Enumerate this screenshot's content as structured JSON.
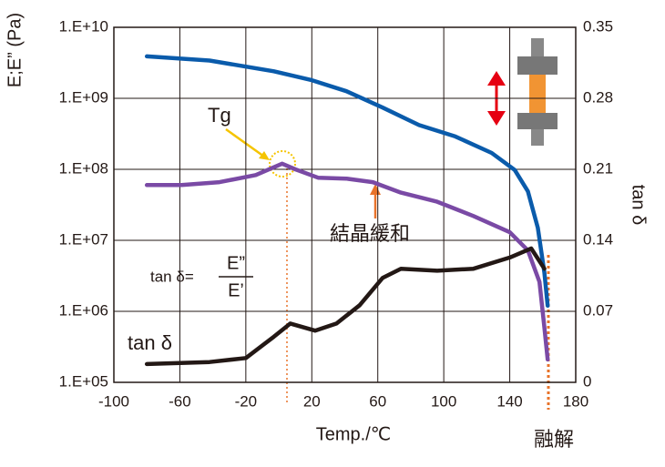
{
  "chart_data": {
    "type": "line",
    "xlabel": "Temp./℃",
    "ylabel": "E;E” (Pa)",
    "y2label": "tan δ",
    "xlim": [
      -100,
      180
    ],
    "xticks": [
      -100,
      -60,
      -20,
      20,
      60,
      100,
      140,
      180
    ],
    "ylim": [
      100000,
      10000000000
    ],
    "log_y": true,
    "yticks": [
      {
        "value": 100000,
        "label": "1.E+05"
      },
      {
        "value": 1000000,
        "label": "1.E+06"
      },
      {
        "value": 10000000,
        "label": "1.E+07"
      },
      {
        "value": 100000000,
        "label": "1.E+08"
      },
      {
        "value": 1000000000,
        "label": "1.E+09"
      },
      {
        "value": 10000000000,
        "label": "1.E+10"
      }
    ],
    "y2lim": [
      0,
      0.35
    ],
    "y2ticks": [
      0,
      0.07,
      0.14,
      0.21,
      0.28,
      0.35
    ],
    "grid": true,
    "annotations": [
      "Tg",
      "結晶緩和",
      "tan δ=",
      "E”",
      "E’",
      "tan δ",
      "融解"
    ],
    "series": [
      {
        "name": "E’",
        "color": "#0a5bab",
        "x": [
          -80,
          -42,
          -3,
          20,
          41,
          63,
          85,
          107,
          129,
          143,
          151,
          157,
          161,
          163
        ],
        "values": [
          3900000000,
          3400000000,
          2400000000,
          1800000000,
          1260000000,
          740000000,
          420000000,
          290000000,
          170000000,
          98000000,
          49000000,
          15000000,
          3500000,
          1200000
        ]
      },
      {
        "name": "E”",
        "color": "#7a4aa5",
        "x": [
          -80,
          -59,
          -36,
          -14,
          2,
          10,
          24,
          41,
          57,
          74,
          96,
          118,
          140,
          151,
          158,
          161,
          163
        ],
        "values": [
          60000000,
          60000000,
          66000000,
          83000000,
          120000000,
          100000000,
          76000000,
          74000000,
          66000000,
          47000000,
          35000000,
          22000000,
          13000000,
          7200000,
          2600000,
          590000,
          210000
        ]
      },
      {
        "name": "tan δ",
        "color": "#231815",
        "axis": "y2",
        "x": [
          -80,
          -42,
          -20,
          -3,
          7,
          22,
          35,
          49,
          63,
          74,
          96,
          118,
          140,
          153,
          161
        ],
        "values": [
          0.018,
          0.02,
          0.024,
          0.045,
          0.058,
          0.051,
          0.058,
          0.076,
          0.103,
          0.112,
          0.11,
          0.112,
          0.123,
          0.132,
          0.112
        ]
      }
    ]
  }
}
